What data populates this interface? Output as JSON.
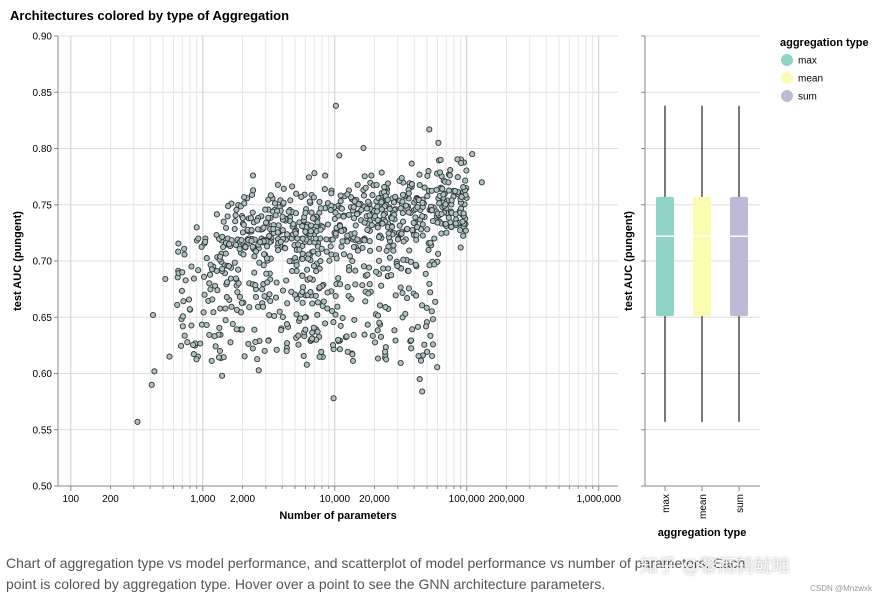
{
  "chart_data": [
    {
      "type": "scatter",
      "title": "Architectures colored by type of Aggregation",
      "xlabel": "Number of parameters",
      "ylabel": "test AUC (pungent)",
      "x_scale": "log",
      "xlim": [
        80,
        1400000
      ],
      "ylim": [
        0.5,
        0.9
      ],
      "x_ticks": [
        "100",
        "200",
        "1,000",
        "2,000",
        "10,000",
        "20,000",
        "100,000",
        "200,000",
        "1,000,000"
      ],
      "y_ticks": [
        "0.50",
        "0.55",
        "0.60",
        "0.65",
        "0.70",
        "0.75",
        "0.80",
        "0.85",
        "0.90"
      ],
      "grid": true,
      "point_color": "#aac4c4",
      "point_stroke": "#333333",
      "sample_points": [
        {
          "x": 320,
          "y": 0.557
        },
        {
          "x": 420,
          "y": 0.652
        },
        {
          "x": 410,
          "y": 0.59
        },
        {
          "x": 430,
          "y": 0.602
        },
        {
          "x": 520,
          "y": 0.684
        },
        {
          "x": 560,
          "y": 0.615
        },
        {
          "x": 640,
          "y": 0.661
        },
        {
          "x": 700,
          "y": 0.69
        },
        {
          "x": 900,
          "y": 0.73
        },
        {
          "x": 1400,
          "y": 0.598
        },
        {
          "x": 2400,
          "y": 0.776
        },
        {
          "x": 9800,
          "y": 0.578
        },
        {
          "x": 10200,
          "y": 0.838
        },
        {
          "x": 44000,
          "y": 0.595
        },
        {
          "x": 46000,
          "y": 0.584
        },
        {
          "x": 52000,
          "y": 0.817
        },
        {
          "x": 90000,
          "y": 0.712
        },
        {
          "x": 110000,
          "y": 0.795
        },
        {
          "x": 130000,
          "y": 0.77
        }
      ]
    },
    {
      "type": "box",
      "xlabel": "aggregation type",
      "ylabel": "test AUC (pungent)",
      "ylim": [
        0.5,
        0.9
      ],
      "categories": [
        "max",
        "mean",
        "sum"
      ],
      "series": [
        {
          "name": "max",
          "color": "#8fd4c4",
          "min": 0.557,
          "q1": 0.651,
          "median": 0.722,
          "q3": 0.757,
          "max": 0.838
        },
        {
          "name": "mean",
          "color": "#fbfcb0",
          "min": 0.557,
          "q1": 0.651,
          "median": 0.722,
          "q3": 0.757,
          "max": 0.838
        },
        {
          "name": "sum",
          "color": "#bdbad6",
          "min": 0.557,
          "q1": 0.651,
          "median": 0.722,
          "q3": 0.757,
          "max": 0.838
        }
      ],
      "legend": {
        "title": "aggregation type",
        "position": "top-right",
        "entries": [
          "max",
          "mean",
          "sum"
        ]
      }
    }
  ],
  "caption": "Chart of aggregation type vs model performance, and scatterplot of model performance vs number of parameters. Each point is colored by aggregation type. Hover over a point to see the GNN architecture parameters.",
  "watermark": "知乎 @黎雨鸫鱿昢",
  "credit": "CSDN @Mnzwxk"
}
